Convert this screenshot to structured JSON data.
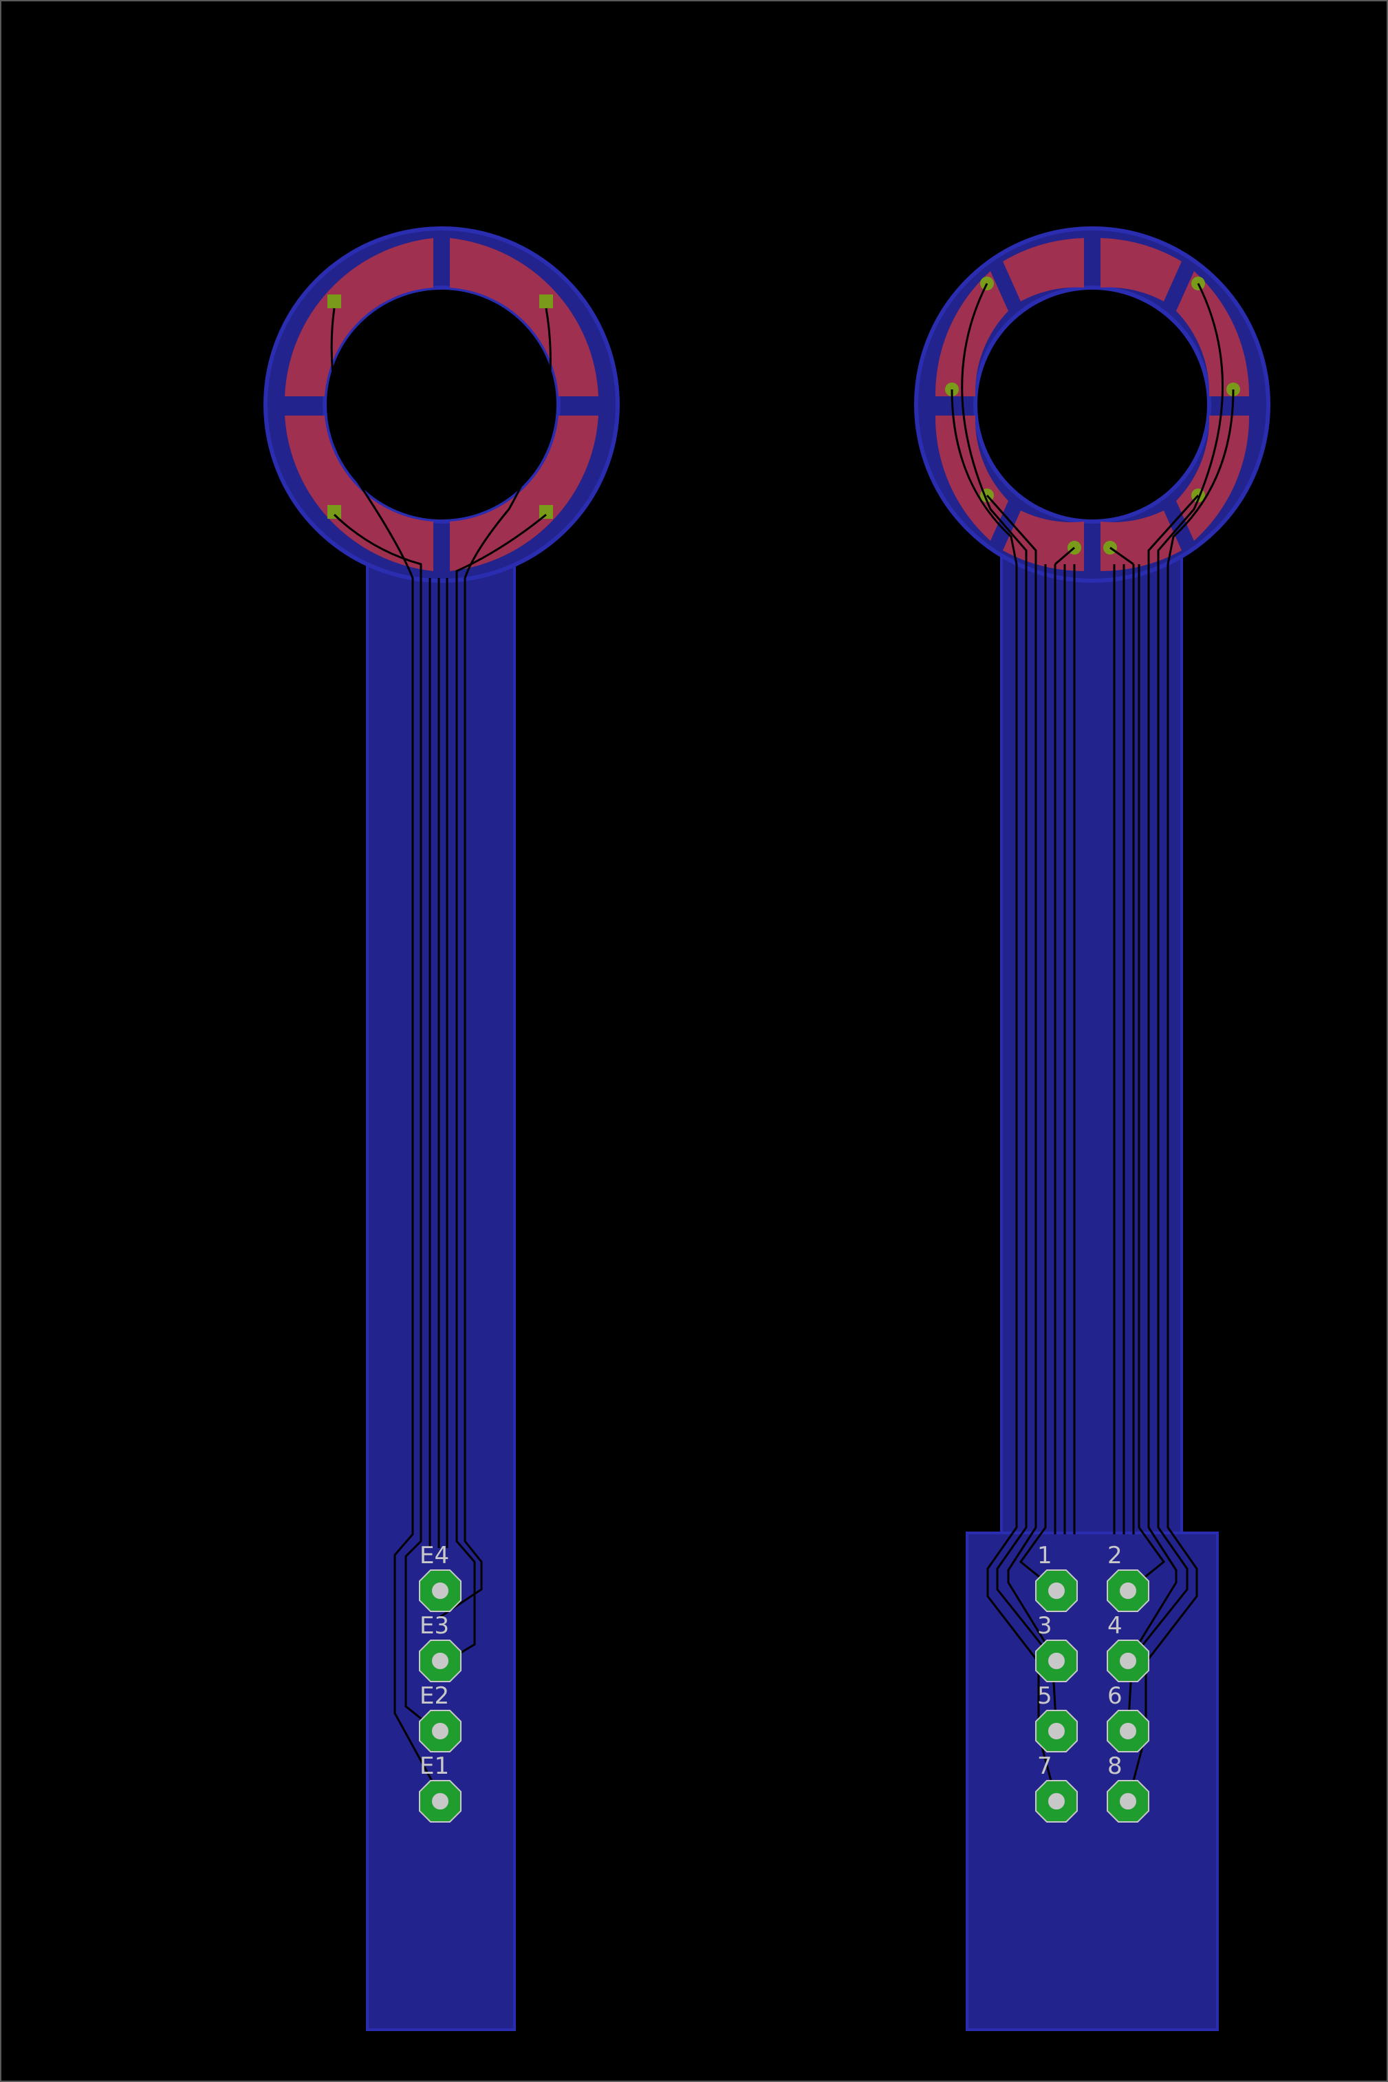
{
  "colors": {
    "background": "#000000",
    "border": "#5a5a5a",
    "board_copper": "#22238c",
    "board_edge": "#2a2db0",
    "electrode": "#a0304f",
    "trace": "#000000",
    "via": "#7a9a1a",
    "pad": "#1f9e2f"
  },
  "left_probe": {
    "electrodes": 4,
    "labels": [
      "E4",
      "E3",
      "E2",
      "E1"
    ]
  },
  "right_probe": {
    "electrodes": 8,
    "labels": [
      "1",
      "2",
      "3",
      "4",
      "5",
      "6",
      "7",
      "8"
    ]
  }
}
